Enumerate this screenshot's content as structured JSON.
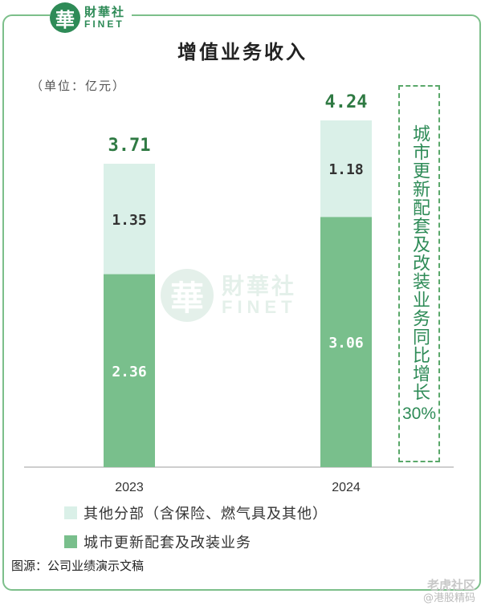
{
  "logo": {
    "cn": "財華社",
    "en": "FINET",
    "seal": "華"
  },
  "title": "增值业务收入",
  "unit": "（单位：亿元）",
  "colors": {
    "urban": "#79bf8c",
    "other": "#daf0e8",
    "total_text": "#2f7a43",
    "frame": "#7cbf8a"
  },
  "chart_data": {
    "type": "bar",
    "stacked": true,
    "categories": [
      "2023",
      "2024"
    ],
    "series": [
      {
        "name": "城市更新配套及改装业务",
        "values": [
          2.36,
          3.06
        ]
      },
      {
        "name": "其他分部（含保险、燃气具及其他）",
        "values": [
          1.35,
          1.18
        ]
      }
    ],
    "totals": [
      "3.71",
      "4.24"
    ],
    "segment_labels": [
      [
        "2.36",
        "1.35"
      ],
      [
        "3.06",
        "1.18"
      ]
    ],
    "ylim": [
      0,
      4.5
    ]
  },
  "side_note": {
    "text": "城市更新配套及改装业务同比增长",
    "pct": "30%"
  },
  "legend": [
    {
      "label": "其他分部（含保险、燃气具及其他）"
    },
    {
      "label": "城市更新配套及改装业务"
    }
  ],
  "source": "图源：公司业绩演示文稿",
  "watermark": {
    "main": "老虎社区",
    "sub": "@港股精码"
  }
}
